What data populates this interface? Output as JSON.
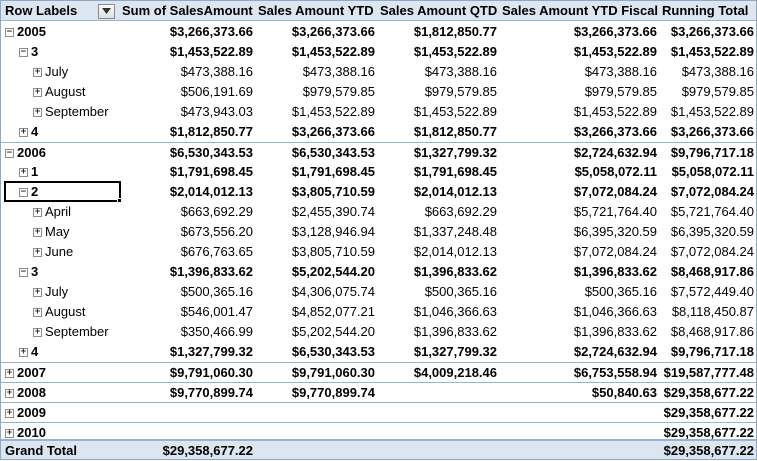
{
  "headers": {
    "row_labels": "Row Labels",
    "col1": "Sum of SalesAmount",
    "col2": "Sales Amount YTD",
    "col3": "Sales Amount QTD",
    "col4": "Sales Amount YTD Fiscal",
    "col5": "Running Total"
  },
  "rows": [
    {
      "label": "2005",
      "expander": "minus",
      "level": 0,
      "bold": true,
      "v": [
        "$3,266,373.66",
        "$3,266,373.66",
        "$1,812,850.77",
        "$3,266,373.66",
        "$3,266,373.66"
      ]
    },
    {
      "label": "3",
      "expander": "minus",
      "level": 1,
      "bold": true,
      "v": [
        "$1,453,522.89",
        "$1,453,522.89",
        "$1,453,522.89",
        "$1,453,522.89",
        "$1,453,522.89"
      ]
    },
    {
      "label": "July",
      "expander": "plus",
      "level": 2,
      "bold": false,
      "v": [
        "$473,388.16",
        "$473,388.16",
        "$473,388.16",
        "$473,388.16",
        "$473,388.16"
      ]
    },
    {
      "label": "August",
      "expander": "plus",
      "level": 2,
      "bold": false,
      "v": [
        "$506,191.69",
        "$979,579.85",
        "$979,579.85",
        "$979,579.85",
        "$979,579.85"
      ]
    },
    {
      "label": "September",
      "expander": "plus",
      "level": 2,
      "bold": false,
      "v": [
        "$473,943.03",
        "$1,453,522.89",
        "$1,453,522.89",
        "$1,453,522.89",
        "$1,453,522.89"
      ]
    },
    {
      "label": "4",
      "expander": "plus",
      "level": 1,
      "bold": true,
      "v": [
        "$1,812,850.77",
        "$3,266,373.66",
        "$1,812,850.77",
        "$3,266,373.66",
        "$3,266,373.66"
      ]
    },
    {
      "label": "2006",
      "expander": "minus",
      "level": 0,
      "bold": true,
      "sep": true,
      "v": [
        "$6,530,343.53",
        "$6,530,343.53",
        "$1,327,799.32",
        "$2,724,632.94",
        "$9,796,717.18"
      ]
    },
    {
      "label": "1",
      "expander": "plus",
      "level": 1,
      "bold": true,
      "v": [
        "$1,791,698.45",
        "$1,791,698.45",
        "$1,791,698.45",
        "$5,058,072.11",
        "$5,058,072.11"
      ]
    },
    {
      "label": "2",
      "expander": "minus",
      "level": 1,
      "bold": true,
      "v": [
        "$2,014,012.13",
        "$3,805,710.59",
        "$2,014,012.13",
        "$7,072,084.24",
        "$7,072,084.24"
      ]
    },
    {
      "label": "April",
      "expander": "plus",
      "level": 2,
      "bold": false,
      "v": [
        "$663,692.29",
        "$2,455,390.74",
        "$663,692.29",
        "$5,721,764.40",
        "$5,721,764.40"
      ]
    },
    {
      "label": "May",
      "expander": "plus",
      "level": 2,
      "bold": false,
      "v": [
        "$673,556.20",
        "$3,128,946.94",
        "$1,337,248.48",
        "$6,395,320.59",
        "$6,395,320.59"
      ]
    },
    {
      "label": "June",
      "expander": "plus",
      "level": 2,
      "bold": false,
      "v": [
        "$676,763.65",
        "$3,805,710.59",
        "$2,014,012.13",
        "$7,072,084.24",
        "$7,072,084.24"
      ]
    },
    {
      "label": "3",
      "expander": "minus",
      "level": 1,
      "bold": true,
      "v": [
        "$1,396,833.62",
        "$5,202,544.20",
        "$1,396,833.62",
        "$1,396,833.62",
        "$8,468,917.86"
      ]
    },
    {
      "label": "July",
      "expander": "plus",
      "level": 2,
      "bold": false,
      "v": [
        "$500,365.16",
        "$4,306,075.74",
        "$500,365.16",
        "$500,365.16",
        "$7,572,449.40"
      ]
    },
    {
      "label": "August",
      "expander": "plus",
      "level": 2,
      "bold": false,
      "v": [
        "$546,001.47",
        "$4,852,077.21",
        "$1,046,366.63",
        "$1,046,366.63",
        "$8,118,450.87"
      ]
    },
    {
      "label": "September",
      "expander": "plus",
      "level": 2,
      "bold": false,
      "v": [
        "$350,466.99",
        "$5,202,544.20",
        "$1,396,833.62",
        "$1,396,833.62",
        "$8,468,917.86"
      ]
    },
    {
      "label": "4",
      "expander": "plus",
      "level": 1,
      "bold": true,
      "v": [
        "$1,327,799.32",
        "$6,530,343.53",
        "$1,327,799.32",
        "$2,724,632.94",
        "$9,796,717.18"
      ]
    },
    {
      "label": "2007",
      "expander": "plus",
      "level": 0,
      "bold": true,
      "sep": true,
      "v": [
        "$9,791,060.30",
        "$9,791,060.30",
        "$4,009,218.46",
        "$6,753,558.94",
        "$19,587,777.48"
      ]
    },
    {
      "label": "2008",
      "expander": "plus",
      "level": 0,
      "bold": true,
      "sep": true,
      "v": [
        "$9,770,899.74",
        "$9,770,899.74",
        "",
        "$50,840.63",
        "$29,358,677.22"
      ]
    },
    {
      "label": "2009",
      "expander": "plus",
      "level": 0,
      "bold": true,
      "sep": true,
      "v": [
        "",
        "",
        "",
        "",
        "$29,358,677.22"
      ]
    },
    {
      "label": "2010",
      "expander": "plus",
      "level": 0,
      "bold": true,
      "sep": true,
      "v": [
        "",
        "",
        "",
        "",
        "$29,358,677.22"
      ]
    }
  ],
  "grand_total": {
    "label": "Grand Total",
    "v": [
      "$29,358,677.22",
      "",
      "",
      "",
      "$29,358,677.22"
    ]
  },
  "icons": {
    "expand": "plus-box-icon",
    "collapse": "minus-box-icon",
    "filter": "filter-dropdown-icon"
  }
}
